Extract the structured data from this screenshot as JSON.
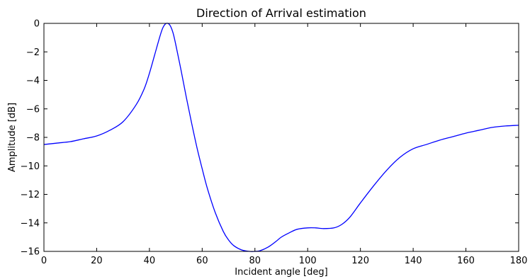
{
  "chart_data": {
    "type": "line",
    "title": "Direction of Arrival estimation",
    "xlabel": "Incident angle [deg]",
    "ylabel": "Amplitude [dB]",
    "xlim": [
      0,
      180
    ],
    "ylim": [
      -16,
      0
    ],
    "xticks": [
      0,
      20,
      40,
      60,
      80,
      100,
      120,
      140,
      160,
      180
    ],
    "yticks": [
      0,
      -2,
      -4,
      -6,
      -8,
      -10,
      -12,
      -14,
      -16
    ],
    "xtick_labels": [
      "0",
      "20",
      "40",
      "60",
      "80",
      "100",
      "120",
      "140",
      "160",
      "180"
    ],
    "ytick_labels": [
      "0",
      "−2",
      "−4",
      "−6",
      "−8",
      "−10",
      "−12",
      "−14",
      "−16"
    ],
    "grid": false,
    "line_color": "#0000ff",
    "series": [
      {
        "x": [
          0,
          5,
          10,
          15,
          20,
          25,
          30,
          35,
          38,
          40,
          42,
          44,
          45,
          46,
          47,
          48,
          49,
          50,
          52,
          54,
          56,
          58,
          60,
          62,
          65,
          68,
          70,
          72,
          75,
          78,
          80,
          82,
          85,
          88,
          90,
          93,
          96,
          100,
          103,
          106,
          110,
          113,
          116,
          120,
          125,
          130,
          135,
          140,
          145,
          150,
          155,
          160,
          165,
          170,
          175,
          180
        ],
        "y": [
          -8.5,
          -8.4,
          -8.3,
          -8.1,
          -7.9,
          -7.5,
          -6.9,
          -5.7,
          -4.6,
          -3.5,
          -2.2,
          -0.9,
          -0.35,
          -0.05,
          0,
          -0.2,
          -0.7,
          -1.5,
          -3.3,
          -5.2,
          -7.0,
          -8.7,
          -10.2,
          -11.6,
          -13.3,
          -14.6,
          -15.2,
          -15.6,
          -15.9,
          -16.0,
          -16.0,
          -15.95,
          -15.7,
          -15.3,
          -15.0,
          -14.7,
          -14.45,
          -14.35,
          -14.35,
          -14.4,
          -14.35,
          -14.1,
          -13.6,
          -12.6,
          -11.4,
          -10.3,
          -9.4,
          -8.8,
          -8.5,
          -8.2,
          -7.95,
          -7.7,
          -7.5,
          -7.3,
          -7.2,
          -7.15
        ]
      }
    ]
  }
}
